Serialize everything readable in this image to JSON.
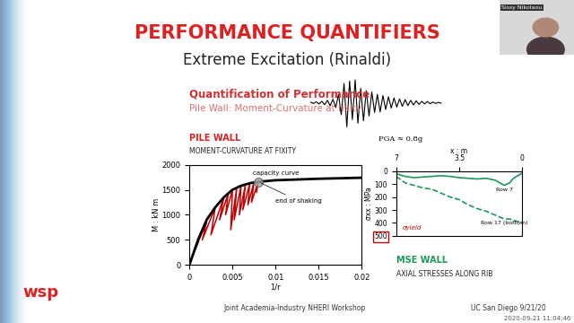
{
  "slide": {
    "title": "PERFORMANCE QUANTIFIERS",
    "subtitle": "Extreme Excitation (Rinaldi)",
    "heading": "Quantification of Performance",
    "subheading": "Pile Wall: Moment-Curvature at fixity",
    "logo": "wsp",
    "footer_left": "Joint Academia-Industry NHERI Workshop",
    "footer_right": "UC San Diego 9/21/20",
    "speaker": "Sissy Nikolaou",
    "timestamp": "2020-09-21 11:04:46"
  },
  "seismogram": {
    "label": "PGA ≈ 0.8g",
    "values": [
      0.02,
      -0.03,
      0.04,
      -0.05,
      0.06,
      -0.08,
      0.1,
      -0.12,
      0.15,
      -0.2,
      0.35,
      -0.5,
      0.8,
      -1.0,
      0.9,
      -0.7,
      0.95,
      -0.85,
      0.6,
      -0.75,
      0.5,
      -0.55,
      0.45,
      -0.4,
      0.35,
      -0.38,
      0.3,
      -0.28,
      0.25,
      -0.22,
      0.2,
      -0.18,
      0.16,
      -0.15,
      0.13,
      -0.12,
      0.1,
      -0.09,
      0.08,
      -0.07,
      0.06,
      -0.05,
      0.05,
      -0.04,
      0.03,
      -0.03,
      0.02,
      -0.02
    ]
  },
  "chart_data": [
    {
      "type": "line",
      "title": "PILE WALL",
      "subtitle": "MOMENT-CURVATURE AT FIXITY",
      "x_label": "1/r",
      "y_label": "M : kN m",
      "xlim": [
        0,
        0.02
      ],
      "xticks": [
        0,
        0.005,
        0.01,
        0.015,
        0.02
      ],
      "ylim": [
        0,
        2000
      ],
      "yticks": [
        0,
        500,
        1000,
        1500,
        2000
      ],
      "series": [
        {
          "color": "#c00000",
          "line_style": "solid",
          "x": [
            0,
            0.001,
            0.0005,
            0.002,
            0.0015,
            0.003,
            0.0025,
            0.004,
            0.0035,
            0.0045,
            0.0042,
            0.005,
            0.0048,
            0.0055,
            0.0052,
            0.006,
            0.0058,
            0.0065,
            0.0062,
            0.007,
            0.0068,
            0.0075,
            0.0072,
            0.008,
            0.0078
          ],
          "values": [
            0,
            450,
            250,
            850,
            500,
            1150,
            600,
            1350,
            900,
            1420,
            1000,
            1500,
            700,
            1550,
            900,
            1580,
            1000,
            1600,
            1100,
            1620,
            1200,
            1650,
            1250,
            1660,
            1450
          ]
        },
        {
          "name": "capacity curve",
          "color": "#000000",
          "line_style": "solid",
          "x": [
            0,
            0.001,
            0.002,
            0.003,
            0.004,
            0.005,
            0.006,
            0.007,
            0.008,
            0.01,
            0.015,
            0.02
          ],
          "values": [
            0,
            500,
            900,
            1150,
            1350,
            1500,
            1580,
            1630,
            1660,
            1690,
            1720,
            1740
          ]
        }
      ],
      "annotations": [
        {
          "text": "end of shaking",
          "x": 0.008,
          "y": 1660
        }
      ]
    },
    {
      "type": "line",
      "title": "MSE WALL",
      "subtitle": "AXIAL STRESSES ALONG RIB",
      "x_label": "x : m",
      "y_label": "σxx : MPa",
      "xlim": [
        7,
        0
      ],
      "xticks": [
        7,
        3.5,
        0
      ],
      "ylim": [
        500,
        0
      ],
      "yticks": [
        0,
        100,
        200,
        300,
        400,
        500
      ],
      "series": [
        {
          "name": "Row 7",
          "color": "#1a9a5a",
          "line_style": "solid",
          "x": [
            7,
            6.5,
            6,
            5.5,
            5,
            4.5,
            4,
            3.5,
            3,
            2.5,
            2,
            1.5,
            1,
            0.7,
            0.5,
            0
          ],
          "values": [
            20,
            40,
            50,
            45,
            40,
            35,
            40,
            50,
            55,
            60,
            55,
            70,
            110,
            90,
            55,
            15
          ]
        },
        {
          "name": "Row 17 (bottom)",
          "color": "#1a9a5a",
          "line_style": "dashed",
          "x": [
            7,
            6.5,
            6,
            5.5,
            5,
            4.5,
            4,
            3.5,
            3,
            2.5,
            2,
            1.5,
            1,
            0.7,
            0.5,
            0
          ],
          "values": [
            40,
            90,
            110,
            130,
            140,
            170,
            200,
            220,
            260,
            290,
            310,
            340,
            370,
            370,
            380,
            400
          ]
        }
      ],
      "annotations": [
        {
          "text": "σyield"
        }
      ]
    }
  ]
}
